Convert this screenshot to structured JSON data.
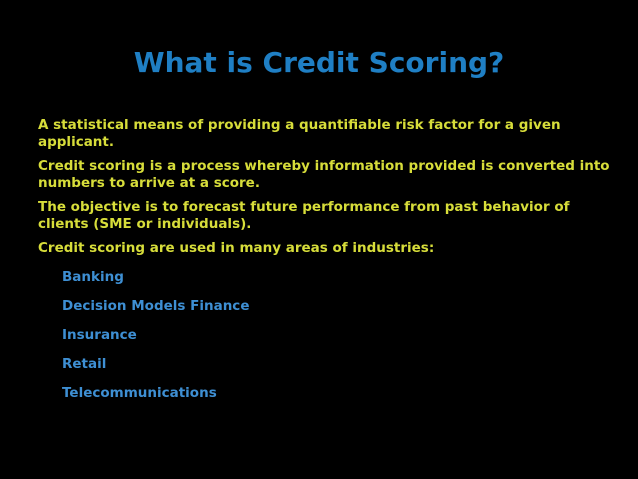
{
  "title": "What is Credit Scoring?",
  "paragraphs": [
    {
      "line1": "A statistical means of providing a quantifiable risk factor for a given",
      "line2": "applicant."
    },
    {
      "line1": "Credit scoring is a process whereby information provided is converted into",
      "line2": "numbers to arrive at a score."
    },
    {
      "line1": "The objective is to forecast future performance from past behavior of",
      "line2": "clients (SME or individuals)."
    },
    {
      "line1": "Credit scoring are used in many areas of industries:",
      "line2": ""
    }
  ],
  "industries": [
    "Banking",
    "Decision Models Finance",
    "Insurance",
    "Retail",
    "Telecommunications"
  ],
  "colors": {
    "background": "#000000",
    "title": "#1F7FC4",
    "body_text": "#D7DD3A",
    "sub_items": "#3E8FD3"
  }
}
